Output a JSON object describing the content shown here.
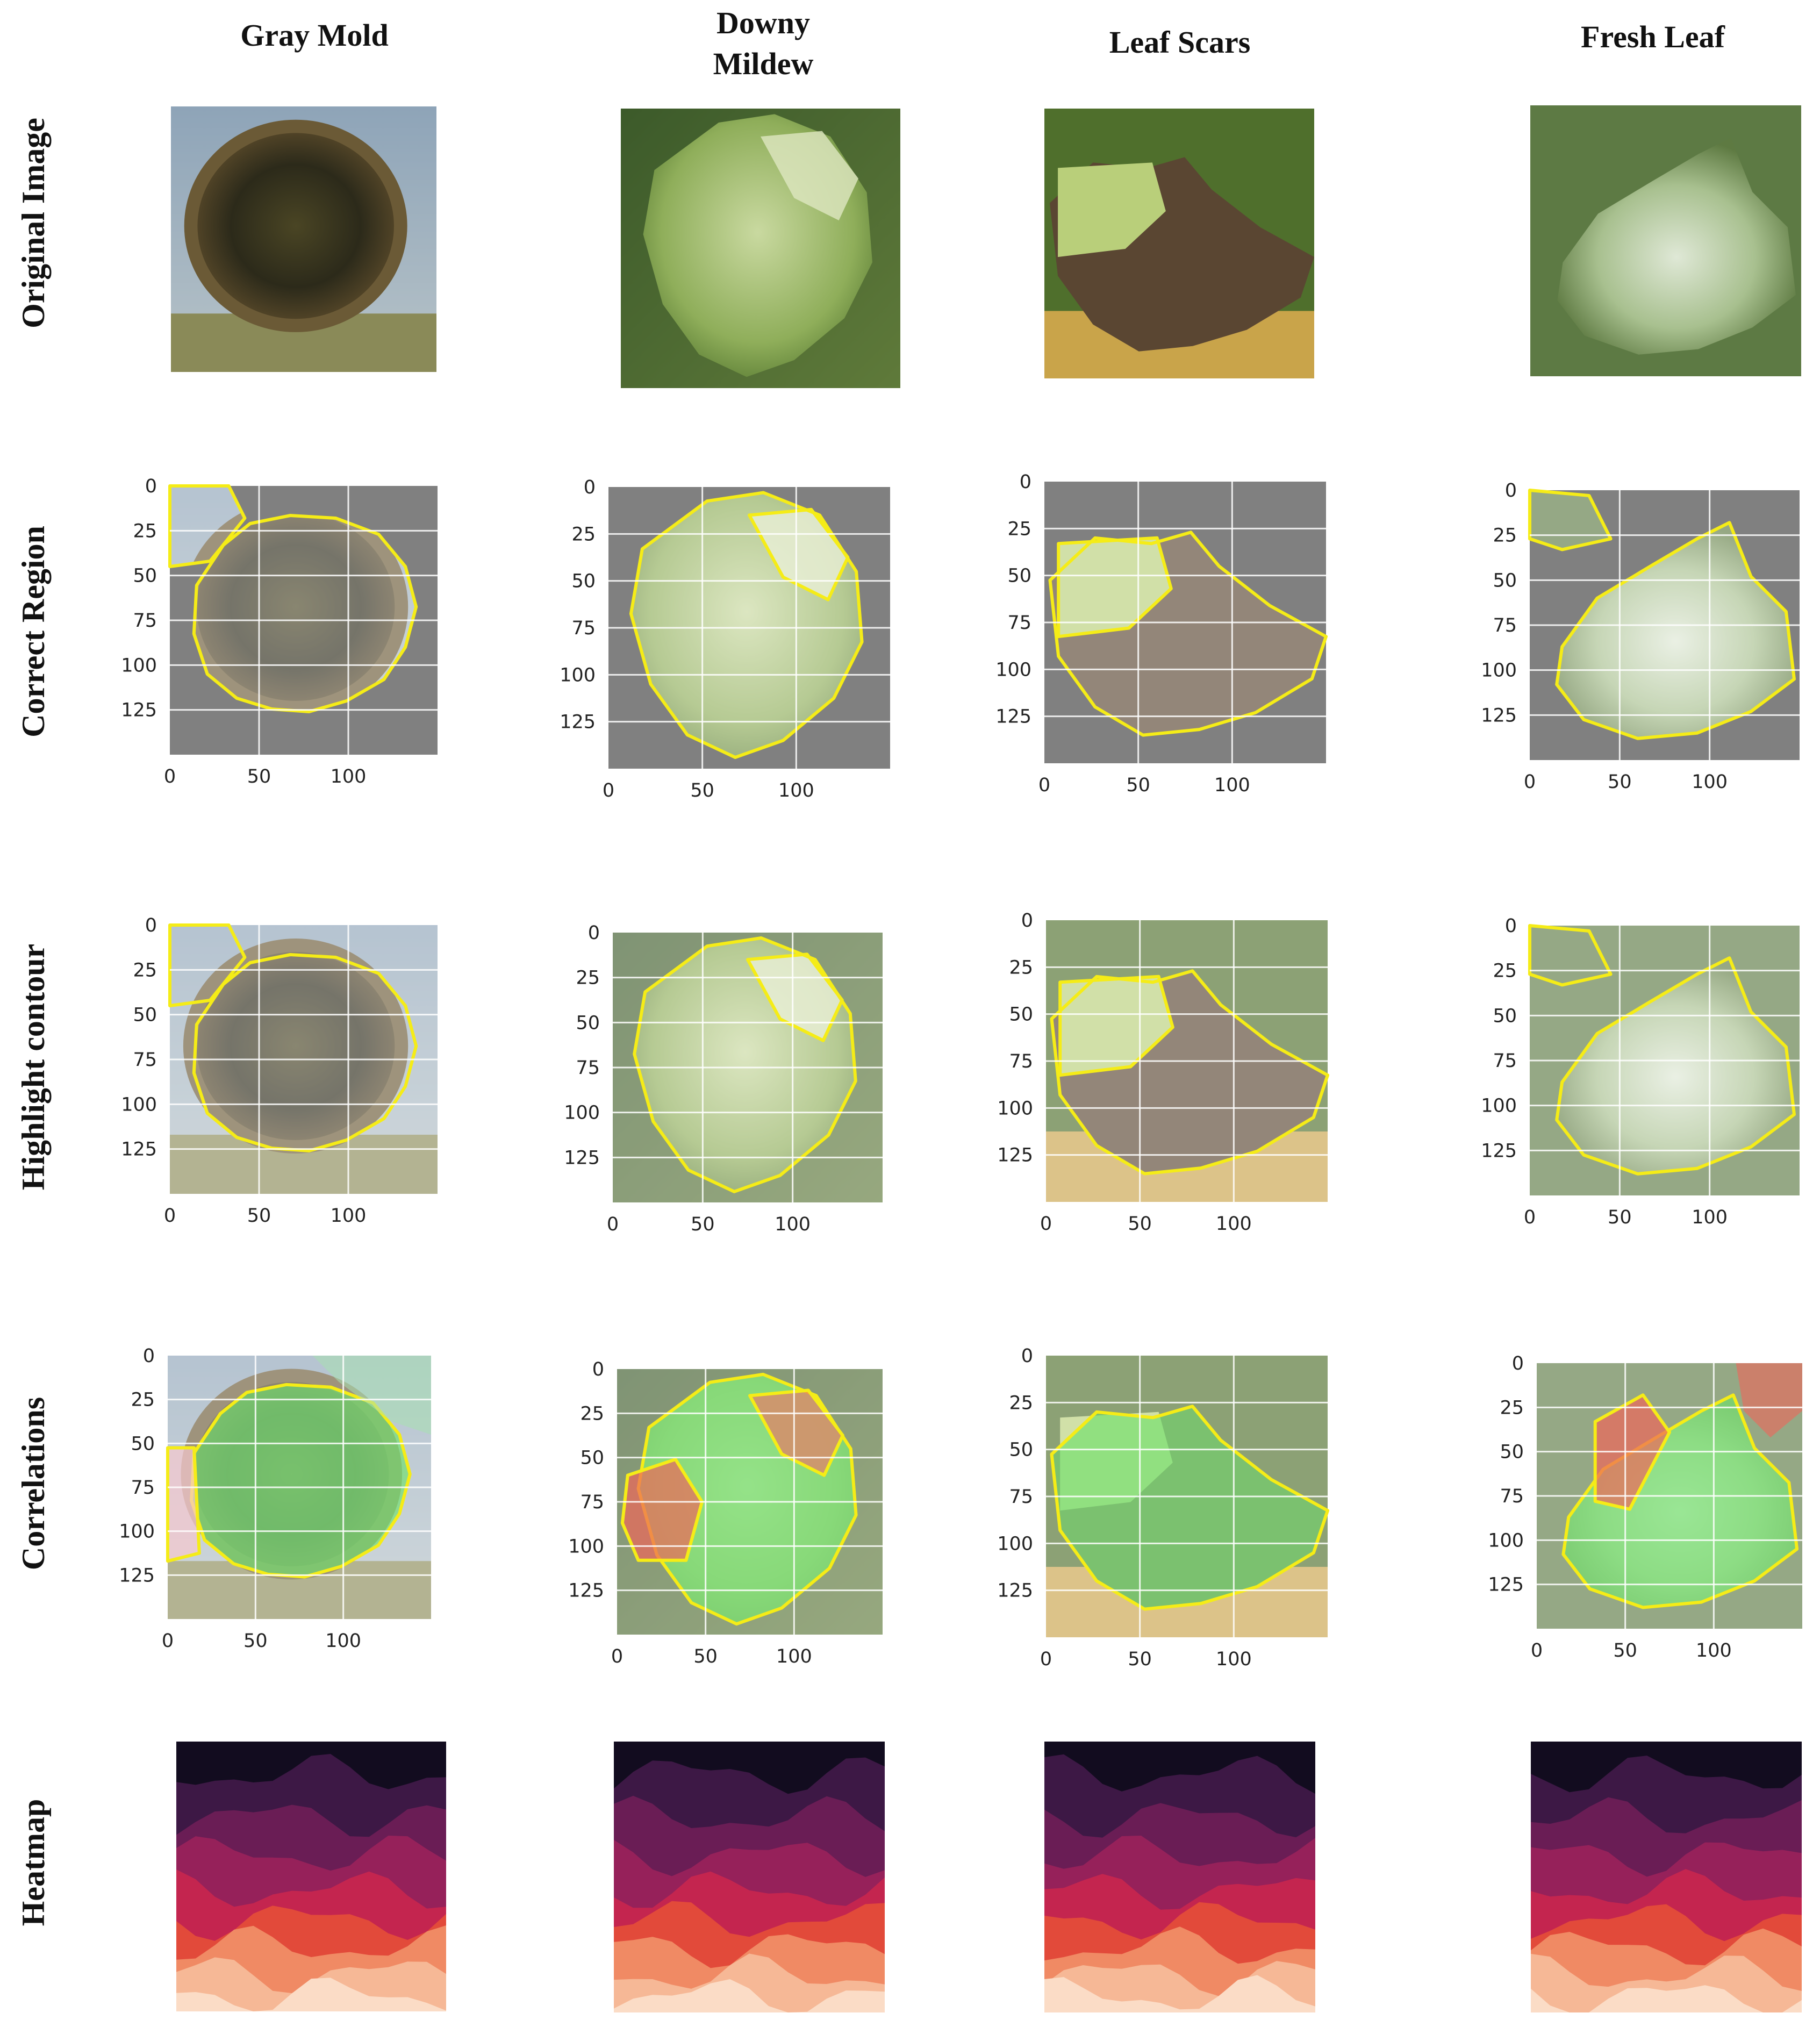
{
  "columns": [
    {
      "title_lines": [
        "Gray Mold"
      ]
    },
    {
      "title_lines": [
        "Downy",
        "Mildew"
      ]
    },
    {
      "title_lines": [
        "Leaf Scars"
      ]
    },
    {
      "title_lines": [
        "Fresh Leaf"
      ]
    }
  ],
  "rows": [
    {
      "label": "Original Image",
      "kind": "photo"
    },
    {
      "label": "Correct Region",
      "kind": "region"
    },
    {
      "label": "Highlight contour",
      "kind": "contour"
    },
    {
      "label": "Correlations",
      "kind": "correlation"
    },
    {
      "label": "Heatmap",
      "kind": "heatmap"
    }
  ],
  "axes": {
    "y_ticks": [
      "0",
      "25",
      "50",
      "75",
      "100",
      "125"
    ],
    "x_ticks": [
      "0",
      "50",
      "100"
    ]
  },
  "colors": {
    "mask_gray": "#808080",
    "contour_yellow": "#f5ec17",
    "positive_green": "#6fe06a",
    "negative_red": "#f0665a",
    "heatmap_palette": [
      "#120c1f",
      "#3d1845",
      "#6a1d55",
      "#96215a",
      "#c4254f",
      "#e24a3a",
      "#f08a64",
      "#f6b896",
      "#fbdcc6"
    ]
  }
}
